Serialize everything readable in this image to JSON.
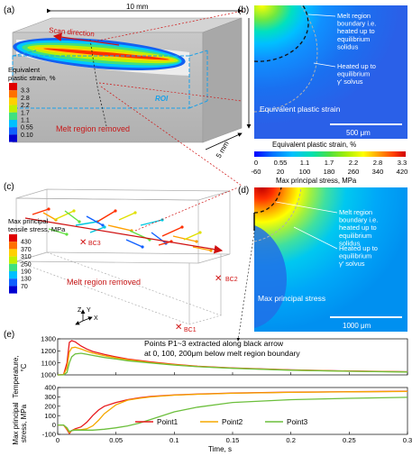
{
  "panels": {
    "a": {
      "label": "(a)",
      "dim_length": "10 mm",
      "dim_height": "5 mm",
      "dim_depth": "5 mm",
      "scan_direction": "Scan direction",
      "roi": "ROI",
      "melt_removed": "Melt region removed",
      "legend_title_1": "Equivalent",
      "legend_title_2": "plastic strain, %",
      "legend_values": [
        "3.3",
        "2.8",
        "2.2",
        "1.7",
        "1.1",
        "0.55",
        "0.10"
      ]
    },
    "b": {
      "label": "(b)",
      "annot1": [
        "Melt region",
        "boundary i.e.",
        "heated up to",
        "equilibrium",
        "solidus"
      ],
      "annot2": [
        "Heated up to",
        "equilibrium",
        "γ' solvus"
      ],
      "field": "Equivalent plastic strain",
      "scalebar": "500 μm"
    },
    "colorbars": {
      "strain_title": "Equivalent plastic strain, %",
      "strain_ticks": [
        "0",
        "0.55",
        "1.1",
        "1.7",
        "2.2",
        "2.8",
        "3.3"
      ],
      "stress_ticks": [
        "-60",
        "20",
        "100",
        "180",
        "260",
        "340",
        "420"
      ],
      "stress_title": "Max principal stress, MPa",
      "colors": [
        "#0000ff",
        "#0070ff",
        "#00b4ff",
        "#00e0c0",
        "#40e040",
        "#a0f000",
        "#ffff00",
        "#ffb000",
        "#ff6000",
        "#ff0000",
        "#c00000"
      ]
    },
    "c": {
      "label": "(c)",
      "legend_title_1": "Max principal",
      "legend_title_2": "tensile stress, MPa",
      "legend_values": [
        "430",
        "370",
        "310",
        "250",
        "190",
        "130",
        "70"
      ],
      "bc1": "BC1",
      "bc2": "BC2",
      "bc3": "BC3",
      "melt_removed": "Melt region removed"
    },
    "d": {
      "label": "(d)",
      "annot1": [
        "Melt region",
        "boundary i.e.",
        "heated up to",
        "equilibrium",
        "solidus"
      ],
      "annot2": [
        "Heated up to",
        "equilibrium",
        "γ' solvus"
      ],
      "field": "Max principal stress",
      "scalebar": "1000 μm"
    },
    "e": {
      "label": "(e)",
      "note_1": "Points P1~3 extracted along black arrow",
      "note_2": "at 0, 100, 200μm below melt region boundary"
    }
  },
  "chart_data": [
    {
      "type": "line",
      "ylabel": "Temperature, °C",
      "xlim": [
        0,
        0.3
      ],
      "ylim": [
        1000,
        1300
      ],
      "yticks": [
        1000,
        1100,
        1200,
        1300
      ],
      "x": [
        0,
        0.005,
        0.008,
        0.01,
        0.012,
        0.015,
        0.02,
        0.025,
        0.03,
        0.04,
        0.05,
        0.06,
        0.08,
        0.1,
        0.12,
        0.15,
        0.2,
        0.25,
        0.3
      ],
      "series": [
        {
          "name": "Point1",
          "color": "#e8191c",
          "values": [
            1000,
            1002,
            1100,
            1270,
            1285,
            1275,
            1240,
            1215,
            1195,
            1170,
            1150,
            1132,
            1107,
            1088,
            1072,
            1058,
            1042,
            1032,
            1026
          ]
        },
        {
          "name": "Point2",
          "color": "#f5a800",
          "values": [
            1000,
            1001,
            1060,
            1190,
            1225,
            1230,
            1215,
            1198,
            1182,
            1160,
            1142,
            1126,
            1102,
            1085,
            1070,
            1056,
            1040,
            1031,
            1025
          ]
        },
        {
          "name": "Point3",
          "color": "#6cbf3c",
          "values": [
            1000,
            1000,
            1020,
            1100,
            1150,
            1175,
            1180,
            1172,
            1162,
            1145,
            1132,
            1118,
            1098,
            1082,
            1068,
            1055,
            1039,
            1030,
            1024
          ]
        }
      ]
    },
    {
      "type": "line",
      "ylabel": "Max principal stress, MPa",
      "xlabel": "Time, s",
      "xlim": [
        0,
        0.3
      ],
      "ylim": [
        -100,
        400
      ],
      "yticks": [
        -100,
        0,
        100,
        200,
        300,
        400
      ],
      "xticks": [
        "0",
        "0.05",
        "0.1",
        "0.15",
        "0.2",
        "0.25",
        "0.3"
      ],
      "x": [
        0,
        0.005,
        0.008,
        0.01,
        0.012,
        0.015,
        0.02,
        0.025,
        0.03,
        0.035,
        0.04,
        0.05,
        0.06,
        0.07,
        0.08,
        0.1,
        0.12,
        0.15,
        0.2,
        0.25,
        0.3
      ],
      "series": [
        {
          "name": "Point1",
          "color": "#e8191c",
          "values": [
            0,
            0,
            -50,
            -90,
            -60,
            -40,
            -20,
            30,
            100,
            160,
            200,
            240,
            270,
            290,
            305,
            320,
            330,
            340,
            350,
            355,
            360
          ]
        },
        {
          "name": "Point2",
          "color": "#f5a800",
          "values": [
            0,
            0,
            -40,
            -80,
            -60,
            -50,
            -50,
            -40,
            -10,
            50,
            120,
            215,
            265,
            285,
            300,
            318,
            328,
            338,
            348,
            354,
            358
          ]
        },
        {
          "name": "Point3",
          "color": "#6cbf3c",
          "values": [
            0,
            0,
            -30,
            -70,
            -60,
            -55,
            -55,
            -55,
            -55,
            -50,
            -45,
            -30,
            -10,
            20,
            60,
            140,
            190,
            240,
            270,
            285,
            295
          ]
        }
      ]
    }
  ]
}
